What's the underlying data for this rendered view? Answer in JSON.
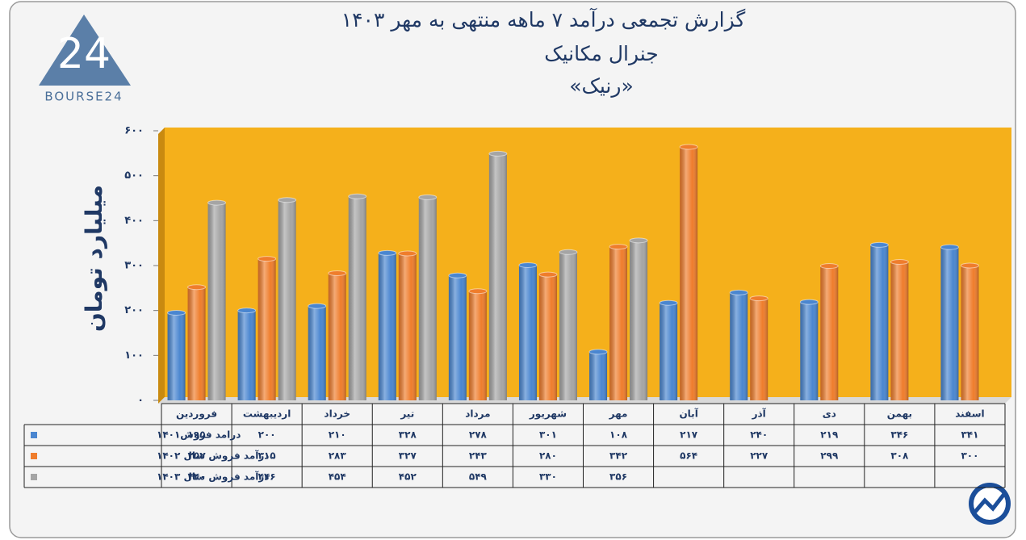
{
  "chart_data": {
    "type": "bar",
    "title": "گزارش تجمعی درآمد ۷ ماهه منتهی به مهر ۱۴۰۳",
    "subtitle": "جنرال مکانیک",
    "subtitle2": "«رنیک»",
    "y_label": "میلیارد تومان",
    "categories": [
      "فروردین",
      "اردیبهشت",
      "خرداد",
      "تیر",
      "مرداد",
      "شهریور",
      "مهر",
      "آبان",
      "آذر",
      "دی",
      "بهمن",
      "اسفند"
    ],
    "ylim": [
      0,
      600
    ],
    "yticks": [
      {
        "value": 0,
        "label": "۰"
      },
      {
        "value": 100,
        "label": "۱۰۰"
      },
      {
        "value": 200,
        "label": "۲۰۰"
      },
      {
        "value": 300,
        "label": "۳۰۰"
      },
      {
        "value": 400,
        "label": "۴۰۰"
      },
      {
        "value": 500,
        "label": "۵۰۰"
      },
      {
        "value": 600,
        "label": "۶۰۰"
      }
    ],
    "series": [
      {
        "name": "درامد فروش۱۴۰۱",
        "color": "#4a86d0",
        "values": [
          195,
          200,
          210,
          328,
          278,
          301,
          108,
          217,
          240,
          219,
          346,
          341
        ],
        "value_labels": [
          "۱۹۵",
          "۲۰۰",
          "۲۱۰",
          "۳۲۸",
          "۲۷۸",
          "۳۰۱",
          "۱۰۸",
          "۲۱۷",
          "۲۴۰",
          "۲۱۹",
          "۳۴۶",
          "۳۴۱"
        ]
      },
      {
        "name": "درآمد فروش سال ۱۴۰۲",
        "color": "#ef7d2c",
        "values": [
          252,
          315,
          283,
          327,
          243,
          280,
          342,
          564,
          227,
          299,
          308,
          300
        ],
        "value_labels": [
          "۲۵۲",
          "۳۱۵",
          "۲۸۳",
          "۳۲۷",
          "۲۴۳",
          "۲۸۰",
          "۳۴۲",
          "۵۶۴",
          "۲۲۷",
          "۲۹۹",
          "۳۰۸",
          "۳۰۰"
        ]
      },
      {
        "name": "درآمد فروش سال ۱۴۰۳",
        "color": "#a5a5a5",
        "values": [
          440,
          446,
          454,
          452,
          549,
          330,
          356,
          null,
          null,
          null,
          null,
          null
        ],
        "value_labels": [
          "۴۴۰",
          "۴۴۶",
          "۴۵۴",
          "۴۵۲",
          "۵۴۹",
          "۳۳۰",
          "۳۵۶",
          null,
          null,
          null,
          null,
          null
        ]
      }
    ]
  }
}
